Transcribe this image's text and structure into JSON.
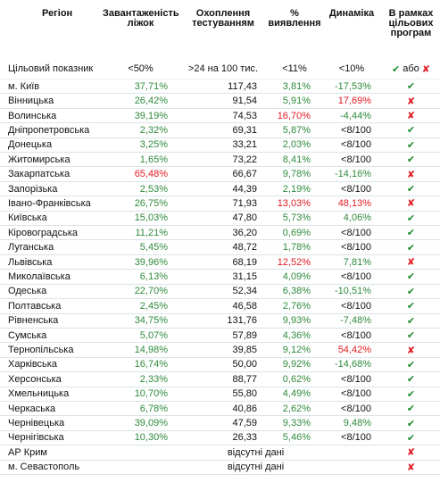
{
  "columns": {
    "region": "Регіон",
    "occupancy": "Завантаженість ліжок",
    "testing": "Охоплення тестуванням",
    "detection": "% виявлення",
    "dynamics": "Динаміка",
    "programs": "В рамках цільових програм"
  },
  "target": {
    "label": "Цільовий показник",
    "occupancy": "<50%",
    "testing": ">24 на 100 тис.",
    "detection": "<11%",
    "dynamics": "<10%",
    "legend_or": "або"
  },
  "no_data_text": "відсутні дані",
  "rows": [
    {
      "region": "м. Київ",
      "occupancy": "37,71%",
      "testing": "117,43",
      "detection": "3,81%",
      "dynamics": "-17,53%",
      "ok": true,
      "c": [
        "g",
        "b",
        "g",
        "g"
      ]
    },
    {
      "region": "Вінницька",
      "occupancy": "26,42%",
      "testing": "91,54",
      "detection": "5,91%",
      "dynamics": "17,69%",
      "ok": false,
      "c": [
        "g",
        "b",
        "g",
        "r"
      ]
    },
    {
      "region": "Волинська",
      "occupancy": "39,19%",
      "testing": "74,53",
      "detection": "16,70%",
      "dynamics": "-4,44%",
      "ok": false,
      "c": [
        "g",
        "b",
        "r",
        "g"
      ]
    },
    {
      "region": "Дніпропетровська",
      "occupancy": "2,32%",
      "testing": "69,31",
      "detection": "5,87%",
      "dynamics": "<8/100",
      "ok": true,
      "c": [
        "g",
        "b",
        "g",
        "b"
      ]
    },
    {
      "region": "Донецька",
      "occupancy": "3,25%",
      "testing": "33,21",
      "detection": "2,03%",
      "dynamics": "<8/100",
      "ok": true,
      "c": [
        "g",
        "b",
        "g",
        "b"
      ]
    },
    {
      "region": "Житомирська",
      "occupancy": "1,65%",
      "testing": "73,22",
      "detection": "8,41%",
      "dynamics": "<8/100",
      "ok": true,
      "c": [
        "g",
        "b",
        "g",
        "b"
      ]
    },
    {
      "region": "Закарпатська",
      "occupancy": "65,48%",
      "testing": "66,67",
      "detection": "9,78%",
      "dynamics": "-14,16%",
      "ok": false,
      "c": [
        "r",
        "b",
        "g",
        "g"
      ]
    },
    {
      "region": "Запорізька",
      "occupancy": "2,53%",
      "testing": "44,39",
      "detection": "2,19%",
      "dynamics": "<8/100",
      "ok": true,
      "c": [
        "g",
        "b",
        "g",
        "b"
      ]
    },
    {
      "region": "Івано-Франківська",
      "occupancy": "26,75%",
      "testing": "71,93",
      "detection": "13,03%",
      "dynamics": "48,13%",
      "ok": false,
      "c": [
        "g",
        "b",
        "r",
        "r"
      ]
    },
    {
      "region": "Київська",
      "occupancy": "15,03%",
      "testing": "47,80",
      "detection": "5,73%",
      "dynamics": "4,06%",
      "ok": true,
      "c": [
        "g",
        "b",
        "g",
        "g"
      ]
    },
    {
      "region": "Кіровоградська",
      "occupancy": "11,21%",
      "testing": "36,20",
      "detection": "0,69%",
      "dynamics": "<8/100",
      "ok": true,
      "c": [
        "g",
        "b",
        "g",
        "b"
      ]
    },
    {
      "region": "Луганська",
      "occupancy": "5,45%",
      "testing": "48,72",
      "detection": "1,78%",
      "dynamics": "<8/100",
      "ok": true,
      "c": [
        "g",
        "b",
        "g",
        "b"
      ]
    },
    {
      "region": "Львівська",
      "occupancy": "39,96%",
      "testing": "68,19",
      "detection": "12,52%",
      "dynamics": "7,81%",
      "ok": false,
      "c": [
        "g",
        "b",
        "r",
        "g"
      ]
    },
    {
      "region": "Миколаївська",
      "occupancy": "6,13%",
      "testing": "31,15",
      "detection": "4,09%",
      "dynamics": "<8/100",
      "ok": true,
      "c": [
        "g",
        "b",
        "g",
        "b"
      ]
    },
    {
      "region": "Одеська",
      "occupancy": "22,70%",
      "testing": "52,34",
      "detection": "6,38%",
      "dynamics": "-10,51%",
      "ok": true,
      "c": [
        "g",
        "b",
        "g",
        "g"
      ]
    },
    {
      "region": "Полтавська",
      "occupancy": "2,45%",
      "testing": "46,58",
      "detection": "2,76%",
      "dynamics": "<8/100",
      "ok": true,
      "c": [
        "g",
        "b",
        "g",
        "b"
      ]
    },
    {
      "region": "Рівненська",
      "occupancy": "34,75%",
      "testing": "131,76",
      "detection": "9,93%",
      "dynamics": "-7,48%",
      "ok": true,
      "c": [
        "g",
        "b",
        "g",
        "g"
      ]
    },
    {
      "region": "Сумська",
      "occupancy": "5,07%",
      "testing": "57,89",
      "detection": "4,36%",
      "dynamics": "<8/100",
      "ok": true,
      "c": [
        "g",
        "b",
        "g",
        "b"
      ]
    },
    {
      "region": "Тернопільська",
      "occupancy": "14,98%",
      "testing": "39,85",
      "detection": "9,12%",
      "dynamics": "54,42%",
      "ok": false,
      "c": [
        "g",
        "b",
        "g",
        "r"
      ]
    },
    {
      "region": "Харківська",
      "occupancy": "16,74%",
      "testing": "50,00",
      "detection": "9,92%",
      "dynamics": "-14,68%",
      "ok": true,
      "c": [
        "g",
        "b",
        "g",
        "g"
      ]
    },
    {
      "region": "Херсонська",
      "occupancy": "2,33%",
      "testing": "88,77",
      "detection": "0,62%",
      "dynamics": "<8/100",
      "ok": true,
      "c": [
        "g",
        "b",
        "g",
        "b"
      ]
    },
    {
      "region": "Хмельницька",
      "occupancy": "10,70%",
      "testing": "55,80",
      "detection": "4,49%",
      "dynamics": "<8/100",
      "ok": true,
      "c": [
        "g",
        "b",
        "g",
        "b"
      ]
    },
    {
      "region": "Черкаська",
      "occupancy": "6,78%",
      "testing": "40,86",
      "detection": "2,62%",
      "dynamics": "<8/100",
      "ok": true,
      "c": [
        "g",
        "b",
        "g",
        "b"
      ]
    },
    {
      "region": "Чернівецька",
      "occupancy": "39,09%",
      "testing": "47,59",
      "detection": "9,33%",
      "dynamics": "9,48%",
      "ok": true,
      "c": [
        "g",
        "b",
        "g",
        "g"
      ]
    },
    {
      "region": "Чернігівська",
      "occupancy": "10,30%",
      "testing": "26,33",
      "detection": "5,46%",
      "dynamics": "<8/100",
      "ok": true,
      "c": [
        "g",
        "b",
        "g",
        "b"
      ]
    },
    {
      "region": "АР Крим",
      "no_data": true,
      "ok": false
    },
    {
      "region": "м. Севастополь",
      "no_data": true,
      "ok": false
    }
  ]
}
